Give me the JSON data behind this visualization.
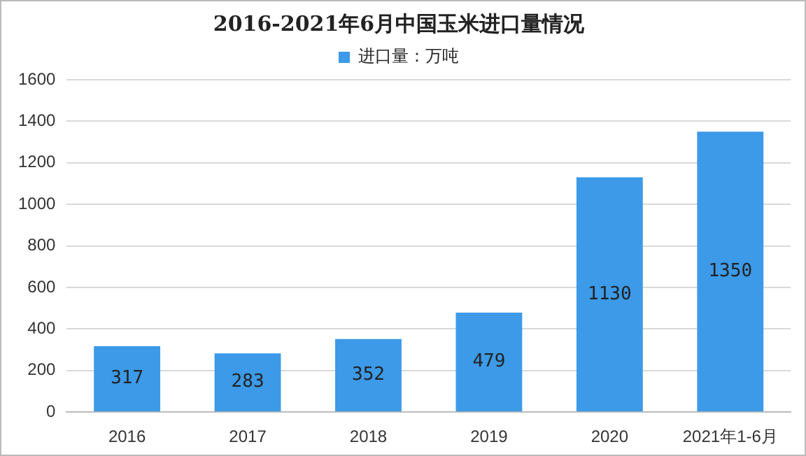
{
  "chart_data": {
    "type": "bar",
    "title": "2016-2021年6月中国玉米进口量情况",
    "categories": [
      "2016",
      "2017",
      "2018",
      "2019",
      "2020",
      "2021年1-6月"
    ],
    "series": [
      {
        "name": "进口量：万吨",
        "color": "#3c9ae8",
        "values": [
          317,
          283,
          352,
          479,
          1130,
          1350
        ]
      }
    ],
    "ylim": [
      0,
      1600
    ],
    "yticks": [
      0,
      200,
      400,
      600,
      800,
      1000,
      1200,
      1400,
      1600
    ],
    "grid": "y",
    "legend": "top",
    "data_labels": true
  }
}
